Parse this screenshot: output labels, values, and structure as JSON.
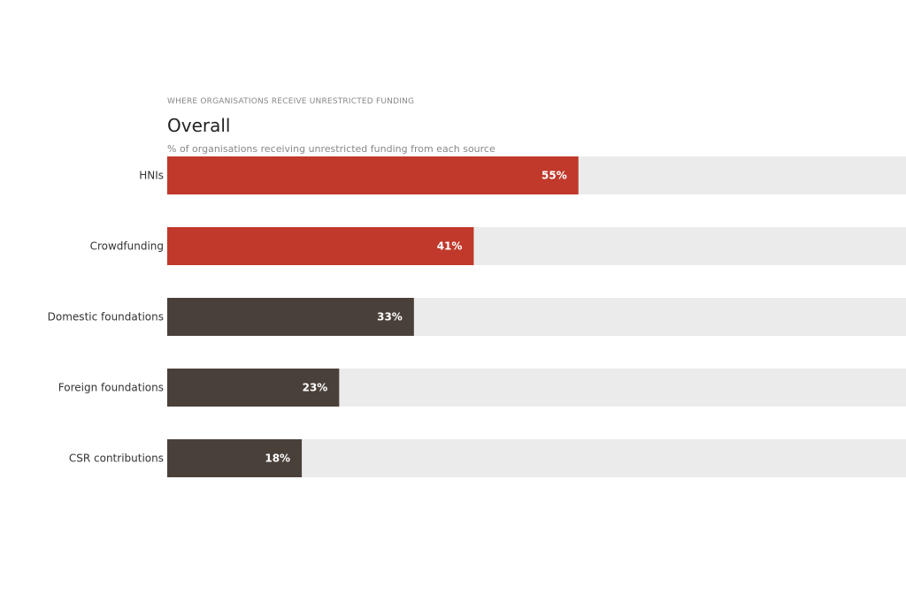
{
  "header": {
    "overline": "WHERE ORGANISATIONS RECEIVE UNRESTRICTED FUNDING",
    "title": "Overall",
    "subtitle": "% of organisations receiving unrestricted funding from each source"
  },
  "colors": {
    "highlight": "#c0392b",
    "default": "#4a403a",
    "track": "#ebebeb",
    "value_text": "#ffffff"
  },
  "chart_data": {
    "type": "bar",
    "orientation": "horizontal",
    "categories": [
      "HNIs",
      "Crowdfunding",
      "Domestic foundations",
      "Foreign foundations",
      "CSR contributions"
    ],
    "values": [
      55,
      41,
      33,
      23,
      18
    ],
    "value_labels": [
      "55%",
      "41%",
      "33%",
      "23%",
      "18%"
    ],
    "highlighted": [
      true,
      true,
      false,
      false,
      false
    ],
    "xlim": [
      0,
      100
    ],
    "unit": "%",
    "grid": false,
    "legend": "none"
  }
}
